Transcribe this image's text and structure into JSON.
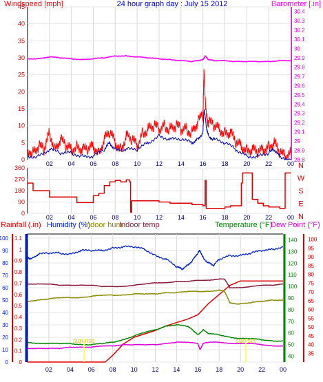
{
  "title": "24 hour graph day : July 15 2012",
  "colors": {
    "wind": "#ff0000",
    "gust_avg": "#0000aa",
    "baro": "#ff00ff",
    "dir": "#dd0000",
    "rain": "#dd0000",
    "humidity": "#0022cc",
    "indoor_hum": "#8b8b00",
    "indoor_temp": "#8b1a3a",
    "temperature": "#008800",
    "dewpoint": "#dd00dd",
    "sunrise": "#ffff66"
  },
  "time_ticks": [
    "02",
    "04",
    "06",
    "08",
    "10",
    "12",
    "14",
    "16",
    "18",
    "20",
    "22",
    "00"
  ],
  "chart_data": [
    {
      "type": "line",
      "id": "wind-baro",
      "left_label": "Windspeed [mph]",
      "right_label": "Barometer [.in]",
      "left_ticks": [
        "0",
        "5",
        "10",
        "15",
        "20",
        "25",
        "30",
        "35",
        "40",
        "45"
      ],
      "right_ticks": [
        "28.8",
        "28.9",
        "29",
        "29.1",
        "29.2",
        "29.3",
        "29.4",
        "29.5",
        "29.6",
        "29.7",
        "29.8",
        "29.9",
        "30",
        "30.1",
        "30.2",
        "30.3",
        "30.4"
      ],
      "ylim_left": [
        0,
        45
      ],
      "ylim_right": [
        28.8,
        30.45
      ],
      "xlim": [
        0,
        24
      ],
      "series": [
        {
          "key": "wind",
          "x": [
            0,
            0.5,
            1,
            1.5,
            2,
            2.5,
            3,
            3.5,
            4,
            4.5,
            5,
            5.5,
            6,
            6.5,
            7,
            7.5,
            8,
            8.5,
            9,
            9.5,
            10,
            10.5,
            11,
            11.5,
            12,
            12.5,
            13,
            13.5,
            14,
            14.5,
            15,
            15.5,
            16,
            16.1,
            16.3,
            16.5,
            17,
            17.5,
            18,
            18.5,
            19,
            19.5,
            20,
            20.5,
            21,
            21.5,
            22,
            22.5,
            23,
            23.5,
            24
          ],
          "values": [
            3,
            2,
            4,
            3,
            8,
            3,
            6,
            4,
            3,
            4,
            3,
            3,
            4,
            2,
            6,
            8,
            5,
            3,
            7,
            6,
            4,
            8,
            9,
            10,
            9,
            10,
            9,
            10,
            9,
            9,
            8,
            11,
            13,
            26,
            13,
            11,
            10,
            9,
            8,
            8,
            5,
            4,
            3,
            3,
            2,
            3,
            4,
            5,
            2,
            1,
            2
          ]
        },
        {
          "key": "gust_avg",
          "x": [
            0,
            1,
            2,
            3,
            4,
            5,
            6,
            7,
            7.5,
            8,
            9,
            10,
            11,
            12,
            13,
            14,
            15,
            15.5,
            16,
            16.1,
            16.3,
            16.5,
            17,
            18,
            19,
            20,
            21,
            22,
            22.5,
            23,
            24
          ],
          "values": [
            1,
            1,
            3,
            2,
            2,
            1,
            1,
            3,
            5,
            3,
            3,
            3,
            5,
            7,
            6,
            6,
            5,
            6,
            8,
            15,
            10,
            7,
            6,
            5,
            3,
            1,
            1,
            2,
            3,
            1,
            0
          ]
        },
        {
          "key": "baro",
          "x": [
            0,
            1,
            2,
            3,
            4,
            5,
            6,
            7,
            8,
            9,
            10,
            11,
            12,
            13,
            14,
            15,
            15.5,
            16,
            16.2,
            16.5,
            17,
            18,
            19,
            20,
            21,
            22,
            23,
            24
          ],
          "values": [
            29.89,
            29.89,
            29.91,
            29.9,
            29.89,
            29.88,
            29.89,
            29.9,
            29.92,
            29.92,
            29.91,
            29.9,
            29.89,
            29.88,
            29.87,
            29.86,
            29.87,
            29.88,
            29.92,
            29.88,
            29.87,
            29.87,
            29.86,
            29.86,
            29.86,
            29.86,
            29.87,
            29.87
          ]
        }
      ]
    },
    {
      "type": "line",
      "id": "direction",
      "left_ticks": [
        "0",
        "90",
        "180",
        "270",
        "360"
      ],
      "right_ticks": [
        "N",
        "E",
        "S",
        "W",
        "N"
      ],
      "ylim": [
        0,
        360
      ],
      "xlim": [
        0,
        24
      ],
      "series": [
        {
          "key": "dir",
          "x": [
            0,
            0.5,
            1,
            1.5,
            2,
            3,
            4,
            4.5,
            5,
            6,
            6.5,
            7,
            7.5,
            8,
            8.5,
            9,
            9.3,
            9.4,
            9.5,
            10,
            11,
            12,
            13,
            14,
            15,
            16,
            16.2,
            16.3,
            16.5,
            17,
            18,
            18.5,
            19,
            19.5,
            19.6,
            20,
            20.5,
            21,
            21.5,
            22,
            23,
            23.5,
            24
          ],
          "values": [
            240,
            180,
            180,
            180,
            130,
            130,
            130,
            85,
            85,
            140,
            160,
            220,
            250,
            260,
            250,
            265,
            250,
            10,
            100,
            100,
            100,
            90,
            80,
            80,
            70,
            60,
            260,
            40,
            40,
            40,
            50,
            60,
            60,
            240,
            320,
            320,
            110,
            80,
            60,
            50,
            40,
            320,
            320
          ]
        }
      ]
    },
    {
      "type": "line",
      "id": "bottom",
      "legend": [
        "Rainfall (.in)",
        "Humidity (%)",
        "Indoor hum",
        "Indoor temp",
        "Temperature (°F)",
        "Dew Point (°F)"
      ],
      "rain_ticks": [
        "0",
        "0.1",
        "0.2",
        "0.3",
        "0.4",
        "0.5",
        "0.6",
        "0.7",
        "0.8",
        "0.9",
        "1",
        "1.1"
      ],
      "humidity_ticks": [
        "0",
        "10",
        "20",
        "30",
        "40",
        "50",
        "60",
        "70",
        "80",
        "90",
        "100"
      ],
      "temp_ticks_right1": [
        "40",
        "50",
        "60",
        "70",
        "80",
        "90",
        "100",
        "110",
        "120",
        "130",
        "140"
      ],
      "temp_ticks_right2": [
        "35",
        "40",
        "45",
        "50",
        "55",
        "60",
        "65",
        "70",
        "75",
        "80",
        "85",
        "90",
        "95",
        "100"
      ],
      "sunrise_label": "sun rise",
      "sunset_label": "sun set",
      "sunrise_time": 5.3,
      "sunset_time": 20.5,
      "xlim": [
        0,
        24
      ],
      "series": [
        {
          "key": "rain",
          "axis": "rain",
          "x": [
            0,
            7.3,
            8,
            9,
            10,
            11,
            12,
            13,
            14,
            15,
            16,
            17,
            18,
            19,
            20,
            21,
            22,
            23,
            24
          ],
          "values": [
            0,
            0,
            0.06,
            0.16,
            0.22,
            0.25,
            0.28,
            0.32,
            0.35,
            0.38,
            0.42,
            0.52,
            0.6,
            0.68,
            0.72,
            0.72,
            0.72,
            0.72,
            0.72
          ]
        },
        {
          "key": "humidity",
          "axis": "humidity",
          "x": [
            0,
            0.3,
            1,
            2,
            3,
            4,
            5,
            6,
            7,
            8,
            9,
            10,
            11,
            12,
            13,
            14,
            14.5,
            15,
            15.5,
            16,
            16.2,
            16.5,
            17,
            17.5,
            18,
            19,
            20,
            21,
            22,
            23,
            24
          ],
          "values": [
            85,
            83,
            87,
            88,
            88,
            87,
            90,
            90,
            90,
            92,
            93,
            93,
            91,
            86,
            83,
            77,
            75,
            78,
            82,
            88,
            90,
            84,
            80,
            78,
            83,
            86,
            86,
            88,
            90,
            91,
            93
          ]
        },
        {
          "key": "indoor_hum",
          "axis": "humidity",
          "x": [
            0,
            1,
            2,
            3,
            4,
            5,
            6,
            7,
            8,
            9,
            10,
            11,
            12,
            13,
            14,
            15,
            16,
            17,
            18,
            18.5,
            19,
            19.5,
            20,
            21,
            22,
            23,
            24
          ],
          "values": [
            49,
            50,
            51,
            52,
            52,
            52,
            53,
            54,
            54,
            54,
            55,
            55,
            55,
            56,
            56,
            57,
            57,
            57,
            58,
            57,
            48,
            47,
            47,
            48,
            49,
            50,
            50
          ]
        },
        {
          "key": "indoor_temp",
          "axis": "humidity",
          "x": [
            0,
            1,
            2,
            3,
            4,
            5,
            6,
            7,
            8,
            9,
            10,
            11,
            12,
            13,
            14,
            15,
            16,
            17,
            18,
            18.5,
            19,
            20,
            21,
            22,
            23,
            24
          ],
          "values": [
            63,
            63,
            63,
            62,
            62,
            62,
            62,
            61,
            61,
            61,
            62,
            63,
            64,
            64,
            65,
            65,
            66,
            66,
            67,
            67,
            60,
            60,
            61,
            62,
            62,
            63
          ]
        },
        {
          "key": "temperature",
          "axis": "temp",
          "x": [
            0,
            1,
            2,
            3,
            4,
            5,
            6,
            7,
            8,
            9,
            10,
            11,
            12,
            13,
            14,
            15,
            15.5,
            16,
            16.5,
            17,
            18,
            19,
            20,
            21,
            22,
            23,
            24
          ],
          "values": [
            56,
            55,
            55,
            55,
            55,
            54,
            54,
            55,
            56,
            58,
            61,
            64,
            66,
            69,
            70,
            69,
            66,
            62,
            66,
            63,
            62,
            60,
            59,
            59,
            58,
            57,
            57
          ]
        },
        {
          "key": "dewpoint",
          "axis": "temp",
          "x": [
            0,
            1,
            2,
            3,
            4,
            5,
            6,
            7,
            8,
            9,
            10,
            11,
            12,
            13,
            14,
            15,
            16,
            16.2,
            16.5,
            17,
            18,
            19,
            20,
            21,
            22,
            23,
            24
          ],
          "values": [
            51,
            51,
            51,
            51,
            52,
            52,
            52,
            53,
            53,
            54,
            54,
            54,
            54,
            55,
            56,
            56,
            55,
            50,
            55,
            56,
            56,
            55,
            55,
            55,
            54,
            53,
            53
          ]
        }
      ]
    }
  ]
}
